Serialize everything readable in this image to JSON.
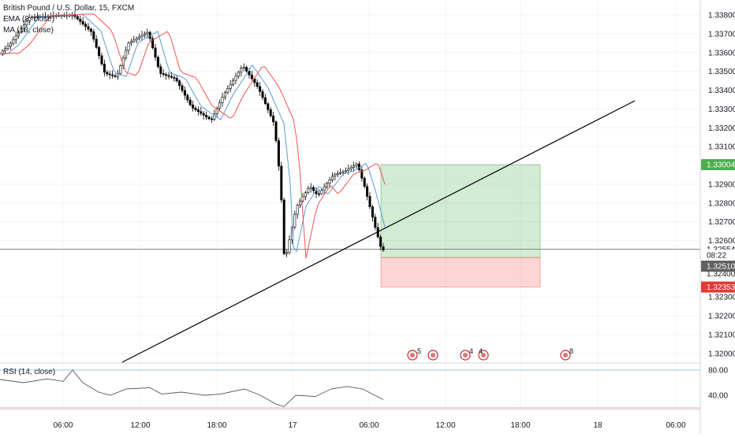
{
  "chart_data": {
    "type": "candlestick",
    "symbol_title": "British Pound / U.S. Dollar, 15, FXCM",
    "indicators": [
      "EMA (8, close)",
      "MA (18, close)"
    ],
    "price_axis": {
      "ticks": [
        "1.33800",
        "1.33700",
        "1.33600",
        "1.33500",
        "1.33400",
        "1.33300",
        "1.33200",
        "1.33100",
        "1.32900",
        "1.32800",
        "1.32700",
        "1.32600",
        "1.32300",
        "1.32200",
        "1.32100",
        "1.32000"
      ],
      "tick_values": [
        1.338,
        1.337,
        1.336,
        1.335,
        1.334,
        1.333,
        1.332,
        1.331,
        1.329,
        1.328,
        1.327,
        1.326,
        1.323,
        1.322,
        1.321,
        1.32
      ],
      "range": [
        1.3195,
        1.3385
      ]
    },
    "price_labels": {
      "take_profit": "1.33004",
      "current": "1.32554",
      "countdown": "08:22",
      "entry": "1.32510",
      "entry_partial": "1.32400",
      "stop_loss": "1.32353"
    },
    "time_axis": [
      "06:00",
      "12:00",
      "18:00",
      "17",
      "06:00",
      "12:00",
      "18:00",
      "18",
      "06:00"
    ],
    "rsi": {
      "label": "RSI (14, close)",
      "ticks": [
        "80.00",
        "40.00"
      ],
      "upper": 80,
      "lower": 20
    },
    "event_badges": [
      "5",
      "4",
      "4",
      "8"
    ],
    "colors": {
      "bull": "#26a69a",
      "bear": "#000000",
      "ema": "#5b9bd5",
      "ma": "#ef5350",
      "tp": "#4caf50",
      "sl": "#e53935",
      "rsi": "#555555"
    }
  }
}
